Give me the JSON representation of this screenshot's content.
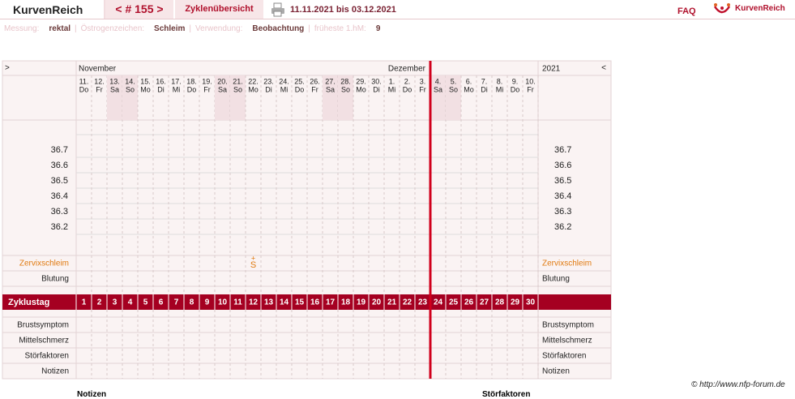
{
  "header": {
    "brand": "KurvenReich",
    "cycle_nav": "< # 155 >",
    "overview": "Zyklenübersicht",
    "date_range": "11.11.2021 bis 03.12.2021",
    "faq": "FAQ",
    "logo_text": "KurvenReich"
  },
  "settings": {
    "separator": "|",
    "items": [
      {
        "label": "Messung:",
        "value": "rektal"
      },
      {
        "label": "Östrogenzeichen:",
        "value": "Schleim"
      },
      {
        "label": "Verwendung:",
        "value": "Beobachtung"
      },
      {
        "label": "früheste 1.hM:",
        "value": 9
      }
    ]
  },
  "chart": {
    "nav_prev": ">",
    "nav_next": "<",
    "months": [
      "November",
      "Dezember"
    ],
    "year": "2021",
    "days": [
      {
        "date": "11.",
        "weekday": "Do",
        "cycle_day": 1,
        "weekend": false
      },
      {
        "date": "12.",
        "weekday": "Fr",
        "cycle_day": 2,
        "weekend": false
      },
      {
        "date": "13.",
        "weekday": "Sa",
        "cycle_day": 3,
        "weekend": true
      },
      {
        "date": "14.",
        "weekday": "So",
        "cycle_day": 4,
        "weekend": true
      },
      {
        "date": "15.",
        "weekday": "Mo",
        "cycle_day": 5,
        "weekend": false
      },
      {
        "date": "16.",
        "weekday": "Di",
        "cycle_day": 6,
        "weekend": false
      },
      {
        "date": "17.",
        "weekday": "Mi",
        "cycle_day": 7,
        "weekend": false
      },
      {
        "date": "18.",
        "weekday": "Do",
        "cycle_day": 8,
        "weekend": false
      },
      {
        "date": "19.",
        "weekday": "Fr",
        "cycle_day": 9,
        "weekend": false
      },
      {
        "date": "20.",
        "weekday": "Sa",
        "cycle_day": 10,
        "weekend": true
      },
      {
        "date": "21.",
        "weekday": "So",
        "cycle_day": 11,
        "weekend": true
      },
      {
        "date": "22.",
        "weekday": "Mo",
        "cycle_day": 12,
        "weekend": false,
        "mucus": "S",
        "mucus_sign": "+"
      },
      {
        "date": "23.",
        "weekday": "Di",
        "cycle_day": 13,
        "weekend": false
      },
      {
        "date": "24.",
        "weekday": "Mi",
        "cycle_day": 14,
        "weekend": false
      },
      {
        "date": "25.",
        "weekday": "Do",
        "cycle_day": 15,
        "weekend": false
      },
      {
        "date": "26.",
        "weekday": "Fr",
        "cycle_day": 16,
        "weekend": false
      },
      {
        "date": "27.",
        "weekday": "Sa",
        "cycle_day": 17,
        "weekend": true
      },
      {
        "date": "28.",
        "weekday": "So",
        "cycle_day": 18,
        "weekend": true
      },
      {
        "date": "29.",
        "weekday": "Mo",
        "cycle_day": 19,
        "weekend": false
      },
      {
        "date": "30.",
        "weekday": "Di",
        "cycle_day": 20,
        "weekend": false
      },
      {
        "date": "1.",
        "weekday": "Mi",
        "cycle_day": 21,
        "weekend": false
      },
      {
        "date": "2.",
        "weekday": "Do",
        "cycle_day": 22,
        "weekend": false
      },
      {
        "date": "3.",
        "weekday": "Fr",
        "cycle_day": 23,
        "weekend": false
      },
      {
        "date": "4.",
        "weekday": "Sa",
        "cycle_day": 24,
        "weekend": true,
        "current": true
      },
      {
        "date": "5.",
        "weekday": "So",
        "cycle_day": 25,
        "weekend": true
      },
      {
        "date": "6.",
        "weekday": "Mo",
        "cycle_day": 26,
        "weekend": false
      },
      {
        "date": "7.",
        "weekday": "Di",
        "cycle_day": 27,
        "weekend": false
      },
      {
        "date": "8.",
        "weekday": "Mi",
        "cycle_day": 28,
        "weekend": false
      },
      {
        "date": "9.",
        "weekday": "Do",
        "cycle_day": 29,
        "weekend": false
      },
      {
        "date": "10.",
        "weekday": "Fr",
        "cycle_day": 30,
        "weekend": false
      }
    ],
    "temperatures": [
      36.7,
      36.6,
      36.5,
      36.4,
      36.3,
      36.2
    ],
    "rows_top": [
      "Zervixschleim",
      "Blutung"
    ],
    "cycle_label": "Zyklustag",
    "rows_bottom": [
      "Brustsymptom",
      "Mittelschmerz",
      "Störfaktoren",
      "Notizen"
    ]
  },
  "footer": {
    "copyright": "© http://www.nfp-forum.de",
    "below": [
      "Notizen",
      "Störfaktoren"
    ]
  }
}
